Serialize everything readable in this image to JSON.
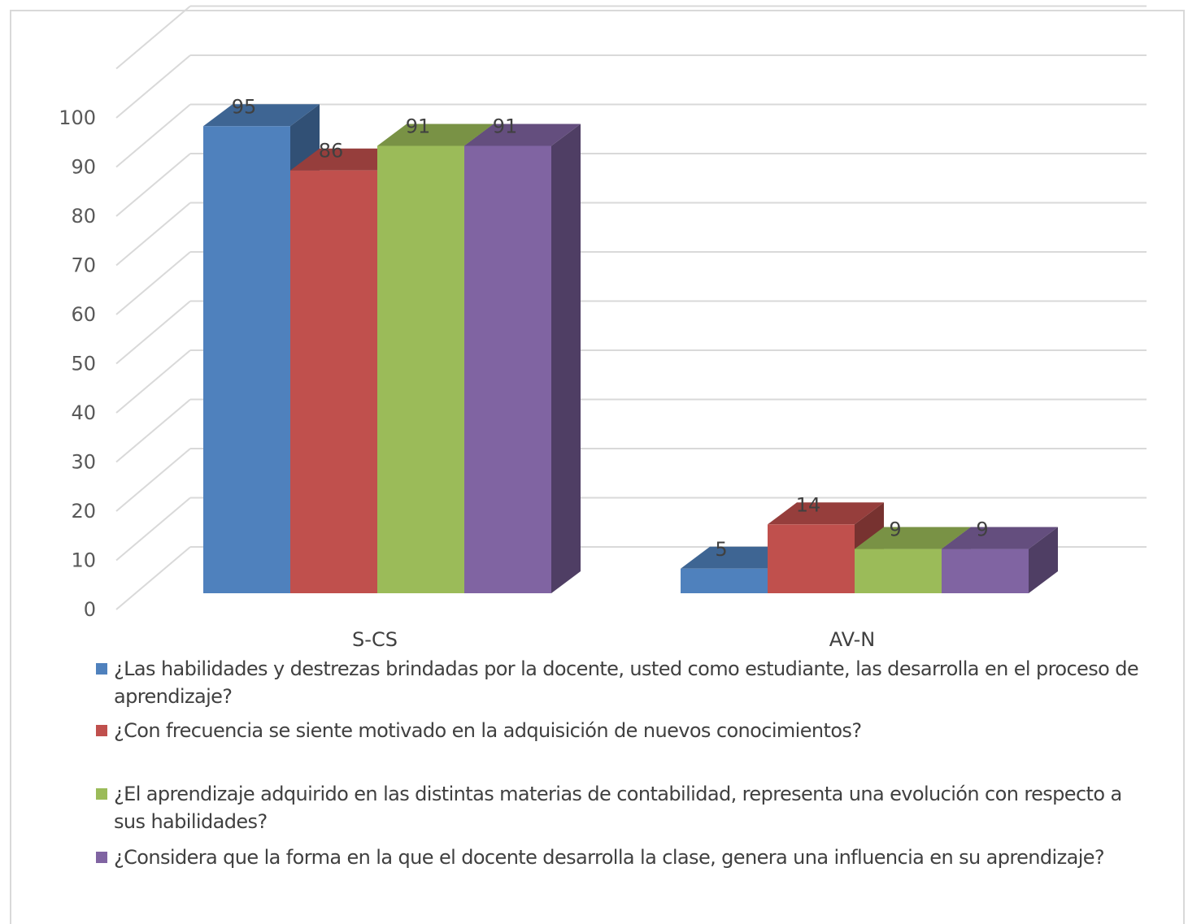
{
  "chart_data": {
    "type": "bar",
    "categories": [
      "S-CS",
      "AV-N"
    ],
    "series": [
      {
        "name": "¿Las habilidades y destrezas brindadas por la docente, usted como estudiante, las desarrolla en el proceso de aprendizaje?",
        "values": [
          95,
          5
        ],
        "color": "#4F81BD"
      },
      {
        "name": "¿Con frecuencia se siente motivado en la adquisición de nuevos conocimientos?",
        "values": [
          86,
          14
        ],
        "color": "#C0504D"
      },
      {
        "name": "¿El aprendizaje adquirido en las distintas materias de contabilidad, representa una evolución con respecto a sus habilidades?",
        "values": [
          91,
          9
        ],
        "color": "#9BBB59"
      },
      {
        "name": "¿Considera que la forma en la que el docente desarrolla la clase, genera una influencia en su aprendizaje?",
        "values": [
          91,
          9
        ],
        "color": "#8064A2"
      }
    ],
    "yticks": [
      0,
      10,
      20,
      30,
      40,
      50,
      60,
      70,
      80,
      90,
      100
    ],
    "ylim": [
      0,
      110
    ],
    "grid": true,
    "three_d": true,
    "legend_position": "bottom"
  }
}
